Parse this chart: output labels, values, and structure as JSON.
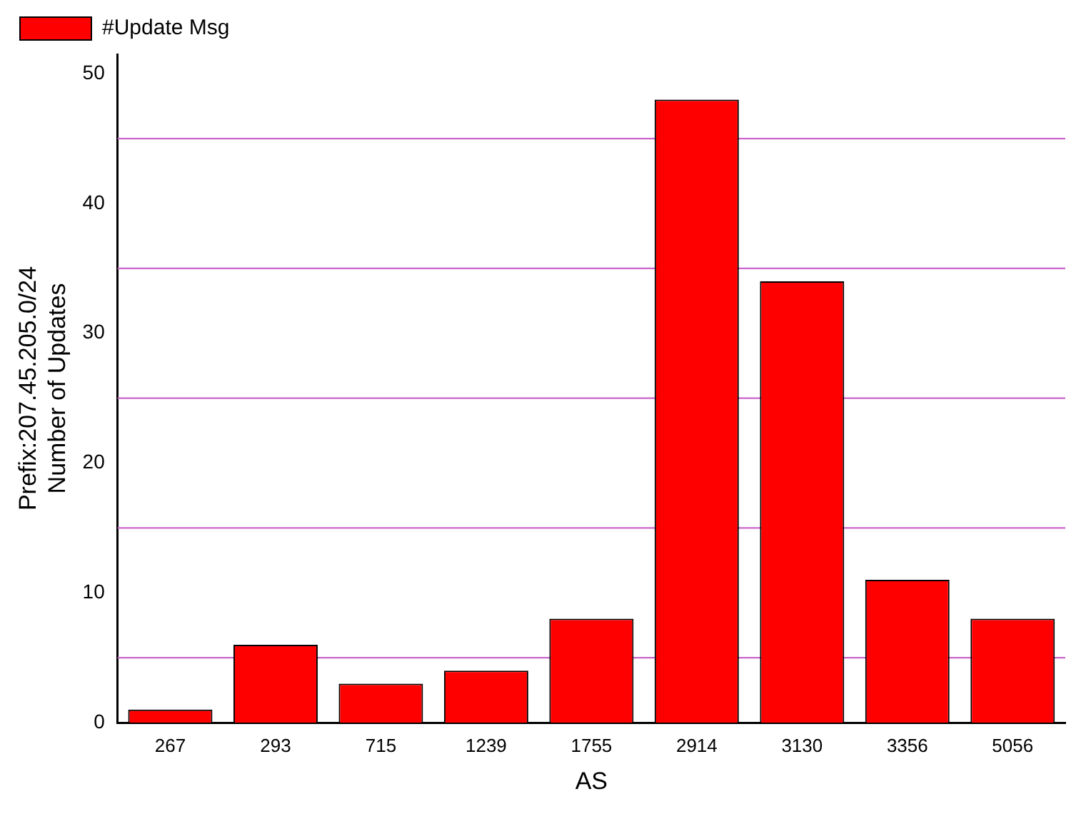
{
  "chart_data": {
    "type": "bar",
    "xlabel": "AS",
    "ylabel": [
      "Prefix:207.45.205.0/24",
      "Number of Updates"
    ],
    "categories": [
      "267",
      "293",
      "715",
      "1239",
      "1755",
      "2914",
      "3130",
      "3356",
      "5056"
    ],
    "series": [
      {
        "name": "#Update Msg",
        "color": "#ff0000",
        "values": [
          1,
          6,
          3,
          4,
          8,
          48,
          34,
          11,
          8
        ]
      }
    ],
    "ylim": [
      0,
      51.5
    ],
    "yticks": [
      0,
      10,
      20,
      30,
      40,
      50
    ],
    "grid": false,
    "legend": "top left",
    "ref_lines": [
      {
        "axis": "y",
        "value": 5,
        "color": "#cc66cc"
      },
      {
        "axis": "y",
        "value": 15,
        "color": "#cc66cc"
      },
      {
        "axis": "y",
        "value": 25,
        "color": "#cc66cc"
      },
      {
        "axis": "y",
        "value": 35,
        "color": "#cc66cc"
      },
      {
        "axis": "y",
        "value": 45,
        "color": "#cc66cc"
      }
    ]
  }
}
